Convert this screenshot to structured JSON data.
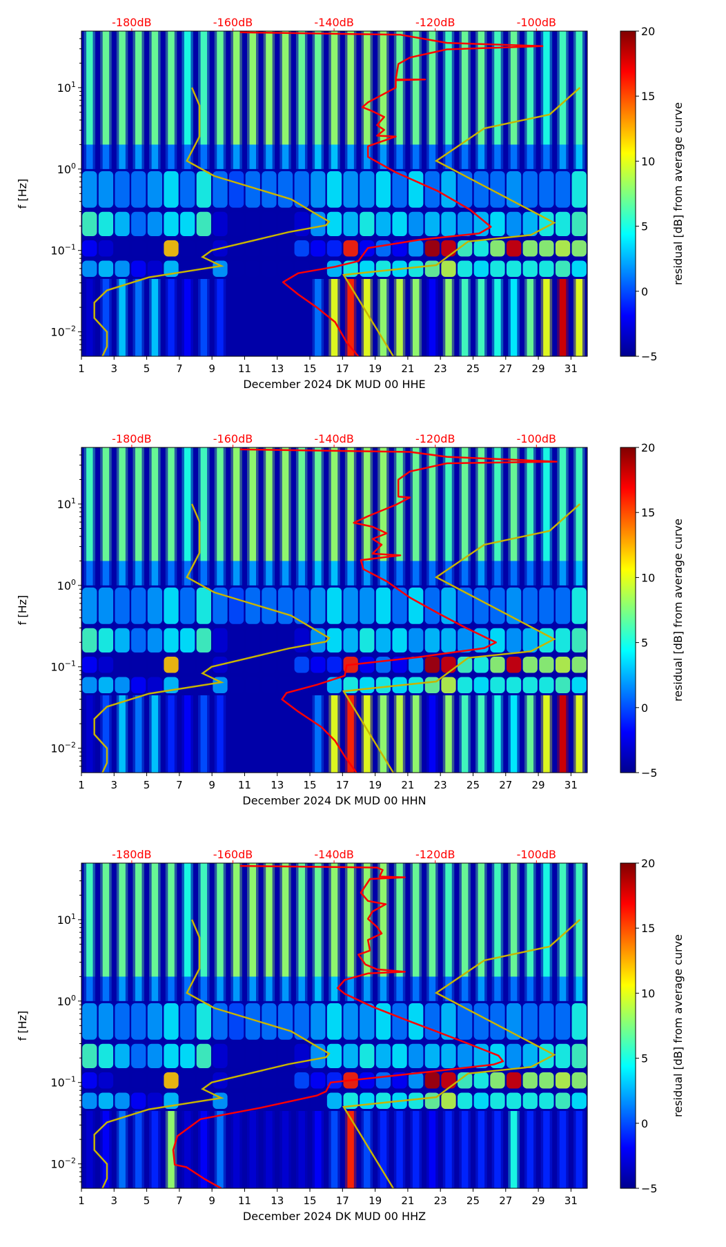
{
  "chart_data": {
    "type": "heatmap",
    "colorbar": {
      "label": "residual [dB] from average curve",
      "range": [
        -5,
        20
      ],
      "ticks": [
        "−5",
        "0",
        "5",
        "10",
        "15",
        "20"
      ],
      "tick_values": [
        -5,
        0,
        5,
        10,
        15,
        20
      ],
      "colormap": "jet"
    },
    "x_axis": {
      "range_days": [
        1,
        32
      ],
      "tick_values": [
        1,
        3,
        5,
        7,
        9,
        11,
        13,
        15,
        17,
        19,
        21,
        23,
        25,
        27,
        29,
        31
      ]
    },
    "y_axis": {
      "label": "f [Hz]",
      "scale": "log",
      "range_hz": [
        0.005,
        50
      ],
      "ticks": [
        {
          "value_log10": 1,
          "base": "10",
          "exp": "1"
        },
        {
          "value_log10": 0,
          "base": "10",
          "exp": "0"
        },
        {
          "value_log10": -1,
          "base": "10",
          "exp": "−1"
        },
        {
          "value_log10": -2,
          "base": "10",
          "exp": "−2"
        }
      ]
    },
    "top_axis": {
      "labels": [
        "-180dB",
        "-160dB",
        "-140dB",
        "-120dB",
        "-100dB"
      ],
      "values_db": [
        -180,
        -160,
        -140,
        -120,
        -100
      ],
      "color": "#ff0000"
    },
    "band_edges_log10_f": [
      1.7,
      0.3,
      0,
      -0.5,
      -0.85,
      -1.1,
      -1.35,
      -2.3
    ],
    "model_curves": {
      "color": "#c8b400",
      "low_noise_model": {
        "db": [
          -168.1,
          -166.6,
          -166.6,
          -169.1,
          -163.7,
          -148.5,
          -141.0,
          -141.6,
          -149,
          -164.2,
          -166,
          -162.3,
          -176.6,
          -184.9,
          -187.4,
          -187.4,
          -184.9,
          -184.9,
          -185.8
        ],
        "log10_f": [
          1,
          0.78,
          0.4,
          0.1,
          -0.085,
          -0.37,
          -0.645,
          -0.69,
          -0.775,
          -1.0,
          -1.08,
          -1.19,
          -1.33,
          -1.49,
          -1.64,
          -1.83,
          -2.0,
          -2.18,
          -2.3
        ]
      },
      "high_noise_model": {
        "db": [
          -91.4,
          -97.4,
          -110.3,
          -119.8,
          -96.5,
          -101.1,
          -113.5,
          -119.8,
          -138.1,
          -128.3
        ],
        "log10_f": [
          1,
          0.67,
          0.5,
          0.1,
          -0.66,
          -0.81,
          -0.89,
          -1.18,
          -1.3,
          -2.3
        ]
      }
    },
    "panels": [
      {
        "xlabel": "December 2024 DK MUD 00 HHE",
        "residual_grid": [
          [
            6,
            7,
            7,
            7,
            7,
            7,
            5,
            6,
            7,
            8,
            8,
            8,
            8,
            7,
            7,
            8,
            8,
            8,
            8,
            7,
            7,
            7,
            6,
            7,
            7,
            6,
            7,
            6,
            5,
            6,
            6
          ],
          [
            1,
            1,
            2,
            2,
            2,
            1,
            1,
            1,
            2,
            2,
            2,
            2,
            2,
            2,
            3,
            3,
            2,
            2,
            2,
            1,
            1,
            1,
            1,
            1,
            2,
            1,
            1,
            1,
            1,
            2,
            3
          ],
          [
            2,
            2,
            1,
            1,
            2,
            4,
            1,
            5,
            1,
            0,
            1,
            1,
            1,
            1,
            2,
            4,
            2,
            2,
            4,
            1,
            4,
            1,
            3,
            1,
            1,
            1,
            2,
            1,
            1,
            1,
            5
          ],
          [
            6,
            5,
            3,
            1,
            2,
            4,
            4,
            6,
            -3,
            -4,
            -4,
            -4,
            -4,
            -3,
            2,
            4,
            3,
            5,
            3,
            4,
            2,
            3,
            3,
            2,
            3,
            4,
            2,
            3,
            5,
            5,
            6
          ],
          [
            -2,
            -3,
            -4,
            -4,
            -4,
            12,
            -4,
            -4,
            -3,
            -4,
            -4,
            -4,
            -4,
            0,
            -2,
            -1,
            16,
            -2,
            1,
            -2,
            2,
            19,
            18,
            6,
            5,
            8,
            18,
            8,
            8,
            9,
            8
          ],
          [
            2,
            3,
            2,
            -2,
            -3,
            3,
            -4,
            -4,
            2,
            -4,
            -4,
            -4,
            -4,
            -4,
            -4,
            3,
            5,
            4,
            5,
            4,
            5,
            7,
            9,
            5,
            4,
            5,
            5,
            5,
            5,
            6,
            4
          ],
          [
            -3,
            0,
            3,
            1,
            3,
            -1,
            -2,
            0,
            -1,
            -4,
            -4,
            -4,
            -4,
            -4,
            1,
            10,
            16,
            10,
            8,
            9,
            8,
            -2,
            8,
            6,
            6,
            5,
            4,
            7,
            10,
            18,
            10
          ]
        ],
        "psd_curve": {
          "color": "#ff0000",
          "db": [
            -158.6,
            -126.9,
            -117.7,
            -98.8,
            -117.7,
            -125,
            -127.3,
            -127.8,
            -122,
            -127.8,
            -127.8,
            -133.3,
            -134.4,
            -132.4,
            -130.1,
            -131.5,
            -130.1,
            -131.5,
            -127.8,
            -133.3,
            -133.3,
            -127.8,
            -119.5,
            -113.1,
            -109,
            -111.3,
            -123.2,
            -133.3,
            -135.2,
            -139.8,
            -147.1,
            -150.1,
            -147.1,
            -143.4,
            -139.8,
            -137.5,
            -135.2
          ],
          "log10_f": [
            1.68,
            1.65,
            1.55,
            1.51,
            1.47,
            1.37,
            1.29,
            1.1,
            1.1,
            1.09,
            1.0,
            0.82,
            0.76,
            0.71,
            0.64,
            0.54,
            0.48,
            0.41,
            0.4,
            0.28,
            0.15,
            -0.04,
            -0.27,
            -0.5,
            -0.71,
            -0.79,
            -0.87,
            -0.97,
            -1.13,
            -1.2,
            -1.28,
            -1.39,
            -1.54,
            -1.7,
            -1.88,
            -2.13,
            -2.3
          ]
        }
      },
      {
        "xlabel": "December 2024 DK MUD 00 HHN",
        "residual_grid": [
          [
            6,
            7,
            7,
            7,
            7,
            7,
            5,
            6,
            7,
            8,
            8,
            8,
            8,
            7,
            7,
            8,
            8,
            8,
            8,
            7,
            7,
            7,
            6,
            7,
            7,
            6,
            7,
            6,
            5,
            6,
            6
          ],
          [
            1,
            1,
            2,
            2,
            2,
            1,
            1,
            1,
            2,
            2,
            2,
            2,
            2,
            2,
            3,
            3,
            2,
            2,
            2,
            1,
            1,
            1,
            1,
            1,
            2,
            1,
            1,
            1,
            1,
            2,
            3
          ],
          [
            2,
            2,
            1,
            1,
            2,
            4,
            1,
            5,
            1,
            0,
            1,
            1,
            1,
            1,
            2,
            4,
            2,
            2,
            4,
            1,
            4,
            1,
            3,
            1,
            1,
            1,
            2,
            1,
            1,
            1,
            5
          ],
          [
            6,
            5,
            3,
            1,
            2,
            4,
            4,
            6,
            -3,
            -4,
            -4,
            -4,
            -4,
            -3,
            2,
            4,
            3,
            5,
            3,
            4,
            2,
            3,
            3,
            2,
            3,
            4,
            2,
            3,
            5,
            5,
            6
          ],
          [
            -2,
            -3,
            -4,
            -4,
            -4,
            12,
            -4,
            -4,
            -3,
            -4,
            -4,
            -4,
            -4,
            0,
            -2,
            -1,
            16,
            -2,
            1,
            -2,
            2,
            19,
            18,
            6,
            5,
            8,
            18,
            8,
            8,
            9,
            8
          ],
          [
            2,
            3,
            2,
            -2,
            -3,
            3,
            -4,
            -4,
            2,
            -4,
            -4,
            -4,
            -4,
            -4,
            -4,
            3,
            5,
            4,
            5,
            4,
            5,
            7,
            9,
            5,
            4,
            5,
            5,
            5,
            5,
            6,
            4
          ],
          [
            -3,
            0,
            3,
            1,
            3,
            -1,
            -2,
            0,
            -1,
            -4,
            -4,
            -4,
            -4,
            -4,
            1,
            10,
            16,
            10,
            8,
            9,
            8,
            -2,
            8,
            6,
            6,
            5,
            4,
            7,
            10,
            18,
            10
          ]
        ],
        "psd_curve": {
          "color": "#ff0000",
          "db": [
            -158.6,
            -125,
            -117.7,
            -96,
            -117.7,
            -125,
            -127.3,
            -127.3,
            -125,
            -127.8,
            -133.3,
            -136.1,
            -132.4,
            -129.6,
            -132.4,
            -130.6,
            -132.4,
            -126.9,
            -134.7,
            -134.2,
            -129.6,
            -125,
            -119.5,
            -114,
            -108,
            -110.3,
            -123.2,
            -137.5,
            -137.9,
            -143.4,
            -149.4,
            -150.3,
            -147.1,
            -142.5,
            -139.8,
            -137.9,
            -135.6
          ],
          "log10_f": [
            1.67,
            1.64,
            1.58,
            1.52,
            1.5,
            1.4,
            1.3,
            1.09,
            1.08,
            0.99,
            0.85,
            0.77,
            0.72,
            0.64,
            0.57,
            0.5,
            0.39,
            0.37,
            0.31,
            0.2,
            0.05,
            -0.15,
            -0.34,
            -0.52,
            -0.7,
            -0.77,
            -0.88,
            -0.98,
            -1.11,
            -1.22,
            -1.32,
            -1.4,
            -1.55,
            -1.74,
            -1.91,
            -2.1,
            -2.3
          ]
        }
      },
      {
        "xlabel": "December 2024 DK MUD 00 HHZ",
        "residual_grid": [
          [
            6,
            7,
            7,
            7,
            7,
            7,
            5,
            6,
            7,
            8,
            8,
            8,
            8,
            7,
            7,
            8,
            8,
            8,
            8,
            7,
            7,
            7,
            6,
            7,
            7,
            6,
            7,
            6,
            5,
            6,
            6
          ],
          [
            1,
            1,
            2,
            2,
            2,
            1,
            1,
            1,
            2,
            2,
            2,
            2,
            2,
            2,
            3,
            3,
            2,
            2,
            2,
            1,
            1,
            1,
            1,
            1,
            2,
            1,
            1,
            1,
            1,
            2,
            3
          ],
          [
            2,
            2,
            1,
            1,
            2,
            4,
            1,
            5,
            1,
            0,
            1,
            1,
            1,
            1,
            2,
            4,
            2,
            2,
            4,
            1,
            4,
            1,
            3,
            1,
            1,
            1,
            2,
            1,
            1,
            1,
            5
          ],
          [
            6,
            5,
            3,
            1,
            2,
            4,
            4,
            6,
            -3,
            -4,
            -4,
            -4,
            -4,
            -3,
            2,
            4,
            3,
            5,
            3,
            4,
            2,
            3,
            3,
            2,
            3,
            4,
            2,
            3,
            5,
            5,
            6
          ],
          [
            -2,
            -3,
            -4,
            -4,
            -4,
            12,
            -4,
            -4,
            -3,
            -4,
            -4,
            -4,
            -4,
            0,
            -2,
            -1,
            16,
            -2,
            1,
            -2,
            2,
            19,
            18,
            6,
            5,
            8,
            18,
            8,
            8,
            9,
            8
          ],
          [
            2,
            3,
            2,
            -2,
            -3,
            3,
            -4,
            -4,
            2,
            -4,
            -4,
            -4,
            -4,
            -4,
            -4,
            3,
            5,
            4,
            5,
            4,
            5,
            7,
            9,
            5,
            4,
            5,
            5,
            5,
            5,
            6,
            4
          ],
          [
            -3,
            -2,
            1,
            0,
            -1,
            8,
            -3,
            -2,
            1,
            -3,
            -3,
            -3,
            -3,
            -3,
            -2,
            0,
            16,
            0,
            -1,
            -1,
            -1,
            -2,
            -1,
            -1,
            -1,
            -1,
            5,
            -1,
            -1,
            -1,
            -1
          ]
        ],
        "psd_curve": {
          "color": "#ff0000",
          "db": [
            -158.6,
            -131.5,
            -130.4,
            -131,
            -126,
            -132.9,
            -134.7,
            -133.3,
            -129.8,
            -132.4,
            -133.3,
            -131.5,
            -130.6,
            -133.3,
            -132.9,
            -135.2,
            -133.8,
            -131.5,
            -126,
            -133.3,
            -137.9,
            -139.3,
            -137.9,
            -132.4,
            -125,
            -119.5,
            -114,
            -107.5,
            -106.6,
            -108.5,
            -121.3,
            -140.7,
            -141.6,
            -143.4,
            -154.5,
            -166.4,
            -171,
            -171.8,
            -171.5,
            -169.2,
            -165.5,
            -162.3
          ],
          "log10_f": [
            1.66,
            1.64,
            1.61,
            1.53,
            1.52,
            1.5,
            1.33,
            1.23,
            1.19,
            1.1,
            1.01,
            0.91,
            0.83,
            0.75,
            0.62,
            0.57,
            0.45,
            0.39,
            0.36,
            0.34,
            0.26,
            0.16,
            0.09,
            -0.07,
            -0.25,
            -0.38,
            -0.51,
            -0.67,
            -0.74,
            -0.78,
            -0.87,
            -1.0,
            -1.11,
            -1.16,
            -1.31,
            -1.45,
            -1.66,
            -1.83,
            -2.01,
            -2.04,
            -2.19,
            -2.3
          ]
        }
      }
    ]
  }
}
